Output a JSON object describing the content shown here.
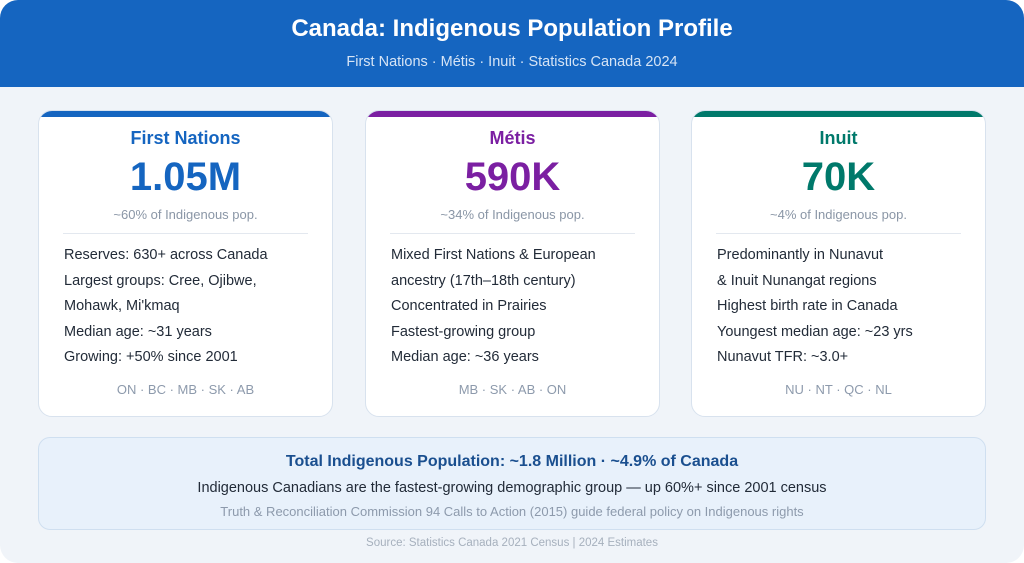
{
  "header": {
    "title": "Canada: Indigenous Population Profile",
    "subtitle": "First Nations · Métis · Inuit · Statistics Canada 2024"
  },
  "cards": [
    {
      "name": "First Nations",
      "population": "1.05M",
      "share": "~60% of Indigenous pop.",
      "accent": "#1565c0",
      "facts": [
        "Reserves: 630+ across Canada",
        "Largest groups: Cree, Ojibwe,",
        "Mohawk, Mi'kmaq",
        "Median age: ~31 years",
        "Growing: +50% since 2001"
      ],
      "regions": "ON · BC · MB · SK · AB"
    },
    {
      "name": "Métis",
      "population": "590K",
      "share": "~34% of Indigenous pop.",
      "accent": "#7b1fa2",
      "facts": [
        "Mixed First Nations & European",
        "ancestry (17th–18th century)",
        "Concentrated in Prairies",
        "Fastest-growing group",
        "Median age: ~36 years"
      ],
      "regions": "MB · SK · AB · ON"
    },
    {
      "name": "Inuit",
      "population": "70K",
      "share": "~4% of Indigenous pop.",
      "accent": "#00796b",
      "facts": [
        "Predominantly in Nunavut",
        "& Inuit Nunangat regions",
        "Highest birth rate in Canada",
        "Youngest median age: ~23 yrs",
        "Nunavut TFR: ~3.0+"
      ],
      "regions": "NU · NT · QC · NL"
    }
  ],
  "summary": {
    "headline": "Total Indigenous Population: ~1.8 Million · ~4.9% of Canada",
    "line": "Indigenous Canadians are the fastest-growing demographic group — up 60%+ since 2001 census",
    "note": "Truth & Reconciliation Commission 94 Calls to Action (2015) guide federal policy on Indigenous rights"
  },
  "source": "Source: Statistics Canada 2021 Census | 2024 Estimates"
}
